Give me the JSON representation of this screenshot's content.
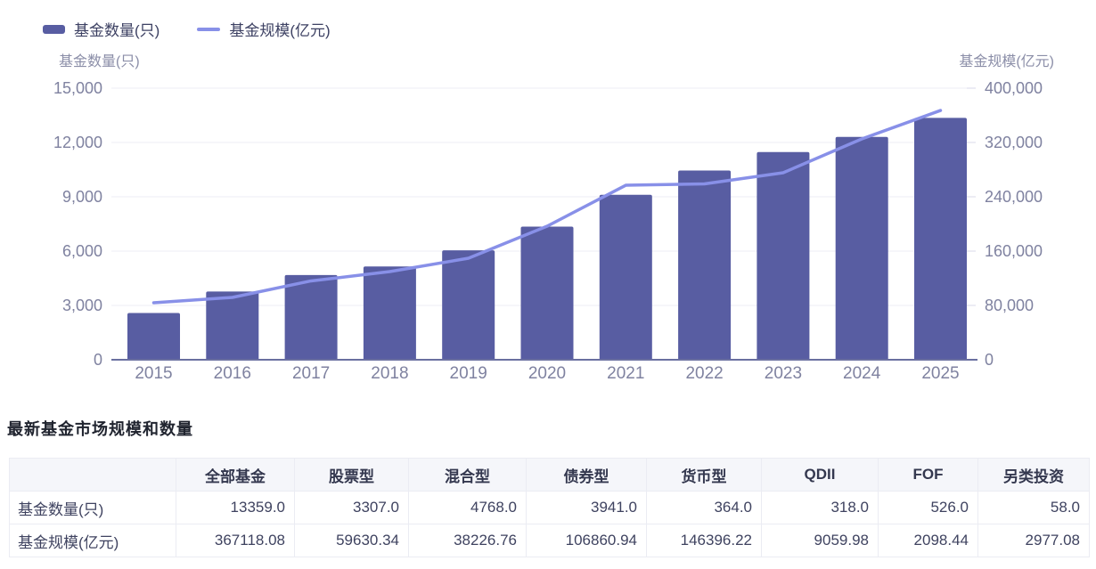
{
  "legend": {
    "items": [
      {
        "label": "基金数量(只)",
        "type": "bar"
      },
      {
        "label": "基金规模(亿元)",
        "type": "line"
      }
    ]
  },
  "chart_data": {
    "type": "bar+line combo",
    "categories": [
      "2015",
      "2016",
      "2017",
      "2018",
      "2019",
      "2020",
      "2021",
      "2022",
      "2023",
      "2024",
      "2025"
    ],
    "series": [
      {
        "name": "基金数量(只)",
        "type": "bar",
        "axis": "left",
        "values": [
          2580,
          3770,
          4680,
          5150,
          6040,
          7350,
          9110,
          10450,
          11470,
          12310,
          13359
        ]
      },
      {
        "name": "基金规模(亿元)",
        "type": "line",
        "axis": "right",
        "values": [
          83900,
          91800,
          116100,
          129800,
          149500,
          196700,
          257000,
          259000,
          275400,
          325300,
          367118.08
        ]
      }
    ],
    "left_axis": {
      "title": "基金数量(只)",
      "min": 0,
      "max": 15000,
      "tick_labels": [
        "15,000",
        "12,000",
        "9,000",
        "6,000",
        "3,000",
        "0"
      ]
    },
    "right_axis": {
      "title": "基金规模(亿元)",
      "min": 0,
      "max": 400000,
      "tick_labels": [
        "400,000",
        "320,000",
        "240,000",
        "160,000",
        "80,000",
        "0"
      ]
    },
    "grid": true,
    "legend_position": "top-left"
  },
  "table": {
    "title": "最新基金市场规模和数量",
    "columns": [
      "全部基金",
      "股票型",
      "混合型",
      "债券型",
      "货币型",
      "QDII",
      "FOF",
      "另类投资"
    ],
    "rows": [
      {
        "label": "基金数量(只)",
        "values": [
          "13359.0",
          "3307.0",
          "4768.0",
          "3941.0",
          "364.0",
          "318.0",
          "526.0",
          "58.0"
        ]
      },
      {
        "label": "基金规模(亿元)",
        "values": [
          "367118.08",
          "59630.34",
          "38226.76",
          "106860.94",
          "146396.22",
          "9059.98",
          "2098.44",
          "2977.08"
        ]
      }
    ]
  },
  "colors": {
    "bar": "#585da2",
    "line": "#8890e8",
    "grid": "#ededf5",
    "tick_dash": "#d8dae9",
    "axis_line": "#6a6fa0",
    "tick_text": "#7f82a0",
    "legend_text": "#3d4163"
  }
}
